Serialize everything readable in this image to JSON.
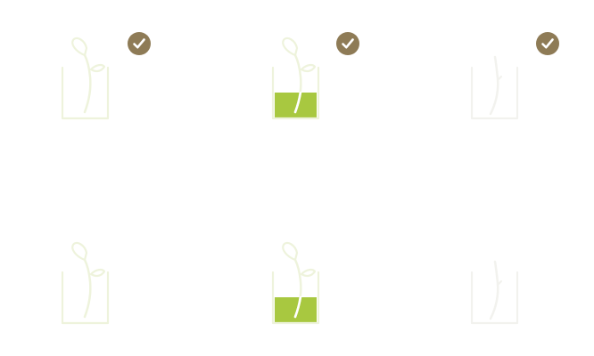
{
  "colors": {
    "background": "#ffffff",
    "cup_outline_light": "#eef3dc",
    "cup_outline_faint": "#f2f2ee",
    "stem_light": "#eef3dc",
    "stem_on_fill": "#ffffff",
    "water_fill": "#a8c840",
    "check_badge": "#8e7b56",
    "check_mark": "#ffffff"
  },
  "tiles": [
    {
      "id": "sprout-cup-empty",
      "water_level": 0.0,
      "plant": "sprout-with-leaves",
      "checked": true
    },
    {
      "id": "sprout-cup-watered",
      "water_level": 0.55,
      "plant": "sprout-with-leaves",
      "checked": true
    },
    {
      "id": "stem-cup-empty",
      "water_level": 0.0,
      "plant": "bare-stem",
      "checked": true
    },
    {
      "id": "sprout-cup-empty",
      "water_level": 0.0,
      "plant": "sprout-with-leaves",
      "checked": false
    },
    {
      "id": "sprout-cup-watered",
      "water_level": 0.55,
      "plant": "sprout-with-leaves",
      "checked": false
    },
    {
      "id": "stem-cup-empty",
      "water_level": 0.0,
      "plant": "bare-stem",
      "checked": false
    }
  ],
  "icons": {
    "check": "checkmark-icon",
    "cup": "cup-icon",
    "plant": "sprout-icon"
  }
}
